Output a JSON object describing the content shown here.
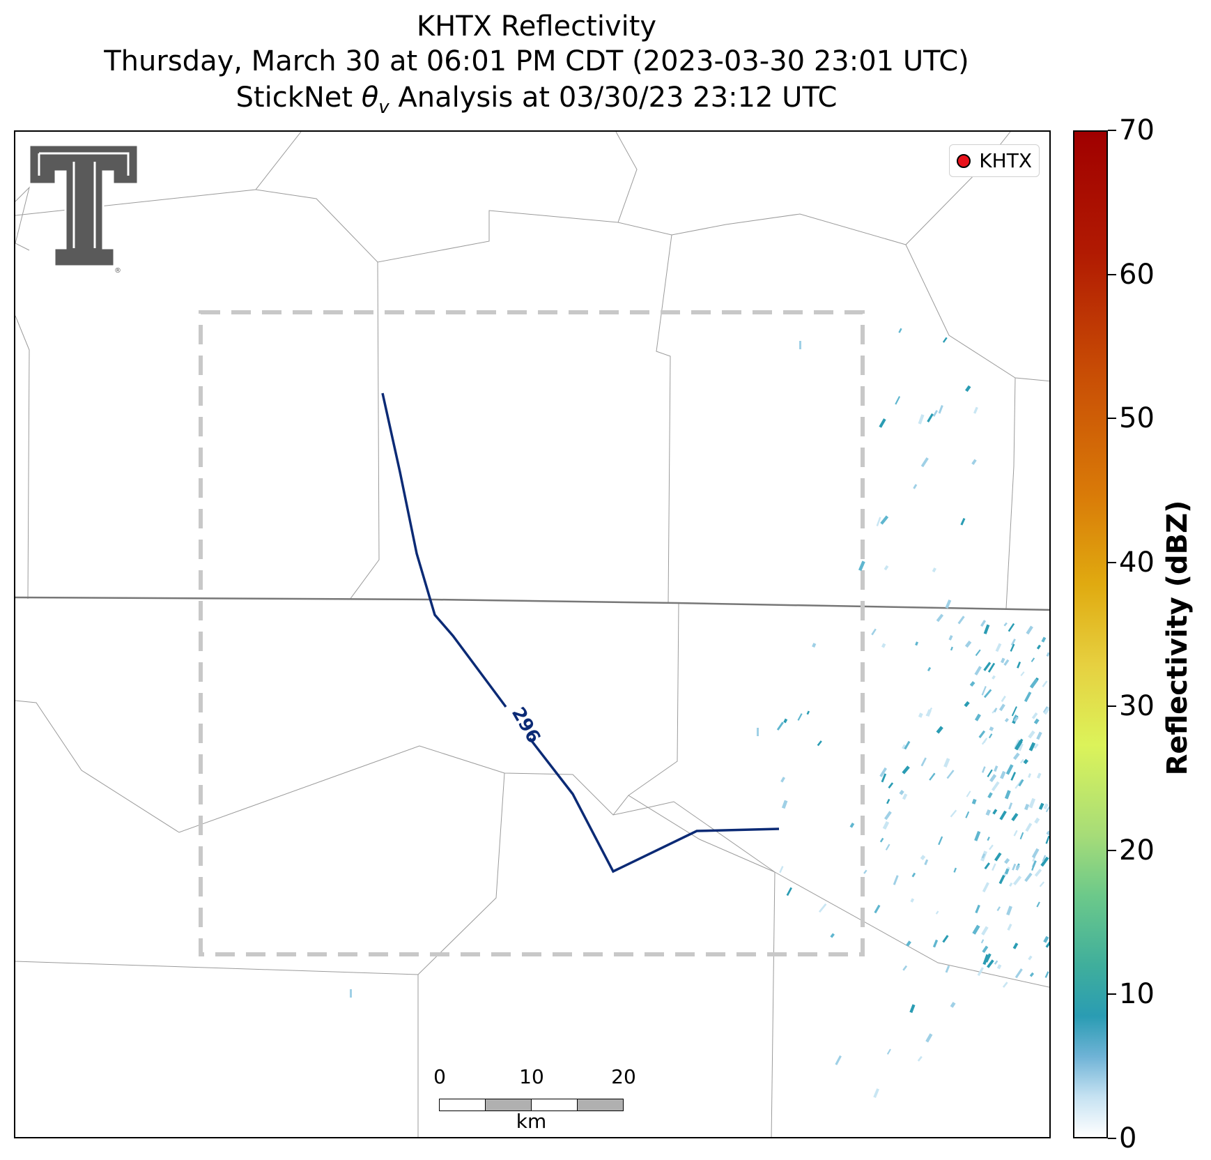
{
  "title": {
    "line1": "KHTX Reflectivity",
    "line2": "Thursday, March 30 at 06:01 PM CDT (2023-03-30 23:01 UTC)",
    "line3_prefix": "StickNet ",
    "line3_symbol": "θ",
    "line3_subscript": "v",
    "line3_suffix": " Analysis at 03/30/23 23:12 UTC"
  },
  "legend": {
    "label": "KHTX",
    "marker_color": "#e8121b"
  },
  "contour": {
    "label": "296",
    "color": "#0b2a75"
  },
  "colorbar": {
    "title": "Reflectivity (dBZ)",
    "ticks": [
      "0",
      "10",
      "20",
      "30",
      "40",
      "50",
      "60",
      "70"
    ],
    "min": 0,
    "max": 70
  },
  "scalebar": {
    "labels": [
      "0",
      "10",
      "20"
    ],
    "unit": "km"
  },
  "logo": {
    "name": "texas-tech-double-t-logo",
    "color": "#5a5a5a",
    "registered": "®"
  },
  "colors": {
    "boundary": "#999999",
    "state_line": "#777777",
    "domain_box": "#c8c8c8",
    "radar_light": "#9fd0e6",
    "radar_mid": "#2a9cb3"
  }
}
